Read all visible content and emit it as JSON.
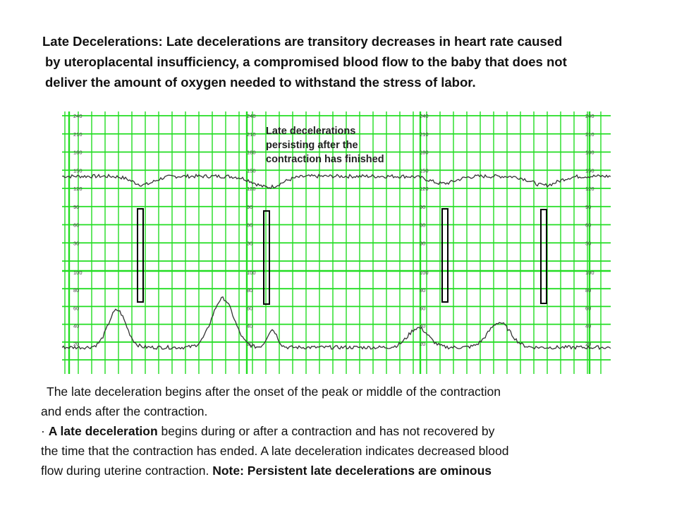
{
  "heading": {
    "term": "Late Decelerations",
    "separator": ":",
    "line1": " Late decelerations are transitory decreases in heart rate caused",
    "line2": "by uteroplacental insufficiency, a compromised blood flow to the baby that does not",
    "line3": "deliver the amount of oxygen needed to withstand the stress of labor."
  },
  "ctg": {
    "annotation": [
      "Late decelerations",
      "persisting after the",
      "contraction has finished"
    ],
    "fhr_scale": [
      "240",
      "210",
      "180",
      "150",
      "120",
      "90",
      "60",
      "30"
    ],
    "uc_scale": [
      "100",
      "80",
      "60",
      "40",
      "20"
    ],
    "grid_color": "#22dd22",
    "trace_color": "#333333"
  },
  "body": {
    "line1": "The late deceleration begins after the onset of the peak or middle of the contraction",
    "line2": "and ends after the contraction.",
    "line3_bullet": "· ",
    "line3_bold": "A late deceleration",
    "line3_rest": " begins during or after a contraction and has not recovered by",
    "line4": "the time that the contraction has ended.  A late deceleration indicates decreased blood",
    "line5_text": "flow during uterine contraction. ",
    "line5_bold": "Note: Persistent late decelerations are ominous"
  }
}
